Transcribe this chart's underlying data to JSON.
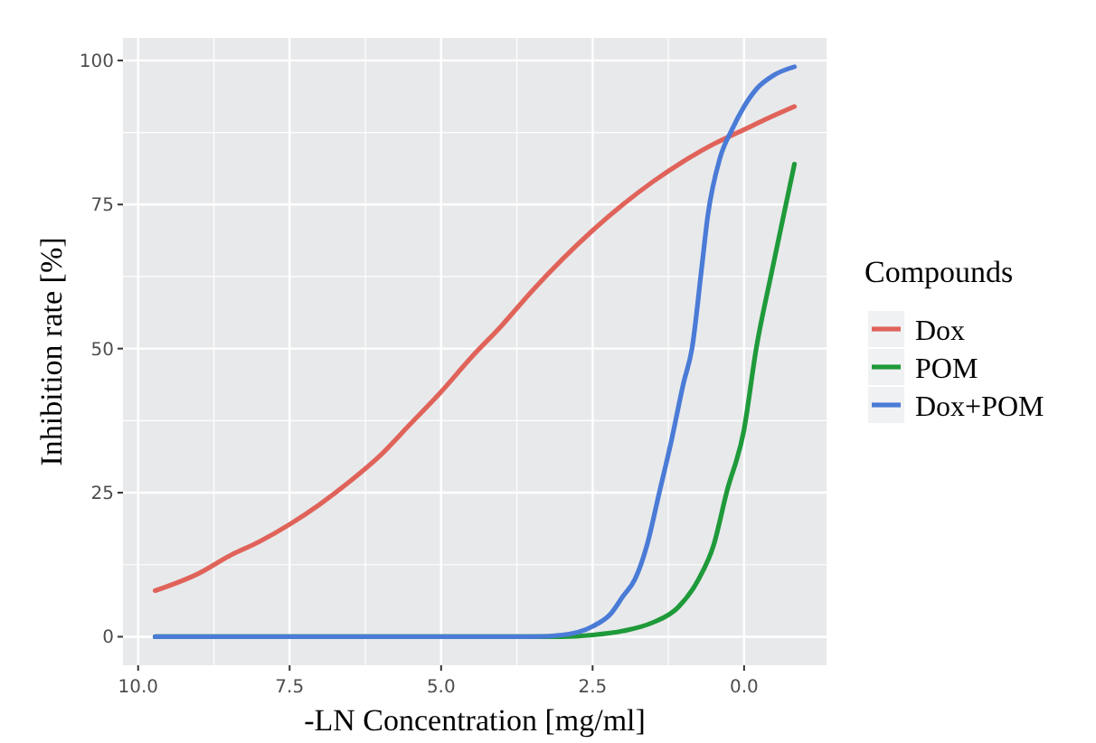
{
  "chart_data": {
    "type": "line",
    "xlabel": "-LN Concentration [mg/ml]",
    "ylabel": "Inhibition rate [%]",
    "legend_title": "Compounds",
    "legend": "right",
    "grid": true,
    "xlim": [
      10.25,
      -1.36
    ],
    "xticks": [
      {
        "value": 10,
        "label": "10.0"
      },
      7.5,
      {
        "value": 5,
        "label": "5.0"
      },
      2.5,
      {
        "value": 0,
        "label": "0.0"
      }
    ],
    "ylim": [
      -4.95,
      103.9
    ],
    "yticks": [
      0,
      25,
      50,
      75,
      100
    ],
    "series": [
      {
        "name": "Dox",
        "color": "#e0635a",
        "x": [
          9.72,
          9,
          8.5,
          8,
          7.5,
          7,
          6.5,
          6,
          5.5,
          5,
          4.5,
          4,
          3.5,
          3,
          2.5,
          2,
          1.5,
          1,
          0.5,
          0,
          -0.4,
          -0.83
        ],
        "values": [
          8,
          11,
          14,
          16.5,
          19.5,
          23,
          27,
          31.5,
          37,
          42.5,
          48.5,
          54,
          60,
          65.5,
          70.5,
          75,
          79,
          82.5,
          85.5,
          88,
          90,
          92
        ]
      },
      {
        "name": "POM",
        "color": "#1f9a3a",
        "x": [
          9.72,
          3,
          2.5,
          2,
          1.5,
          1.1,
          0.75,
          0.5,
          0.29,
          0,
          -0.2,
          -0.45,
          -0.69,
          -0.83
        ],
        "values": [
          0,
          0,
          0.3,
          1,
          2.5,
          5,
          10,
          16,
          25,
          36,
          50,
          63,
          75,
          82
        ]
      },
      {
        "name": "Dox+POM",
        "color": "#4a7bd6",
        "x": [
          9.72,
          3.5,
          3,
          2.5,
          2.2,
          2,
          1.8,
          1.6,
          1.4,
          1.2,
          1,
          0.86,
          0.7,
          0.6,
          0.4,
          0.2,
          0,
          -0.2,
          -0.5,
          -0.83
        ],
        "values": [
          0,
          0,
          0.3,
          1.8,
          4,
          7,
          10,
          16,
          25,
          34,
          44,
          50,
          64,
          73,
          83,
          88,
          92,
          95,
          97.5,
          98.9
        ]
      }
    ]
  }
}
